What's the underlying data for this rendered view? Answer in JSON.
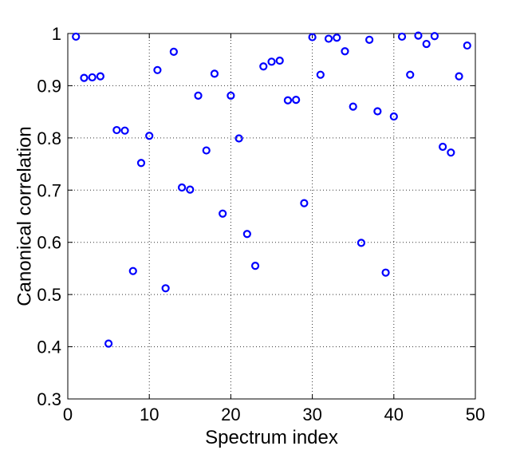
{
  "chart_data": {
    "type": "scatter",
    "xlabel": "Spectrum index",
    "ylabel": "Canonical correlation",
    "xlim": [
      0,
      50
    ],
    "ylim": [
      0.3,
      1
    ],
    "xticks": [
      "0",
      "10",
      "20",
      "30",
      "40",
      "50"
    ],
    "yticks": [
      "0.3",
      "0.4",
      "0.5",
      "0.6",
      "0.7",
      "0.8",
      "0.9",
      "1"
    ],
    "grid": true,
    "marker": "open-circle",
    "color": "#0000ff",
    "x": [
      1,
      2,
      3,
      4,
      5,
      6,
      7,
      8,
      9,
      10,
      11,
      12,
      13,
      14,
      15,
      16,
      17,
      18,
      19,
      20,
      21,
      22,
      23,
      24,
      25,
      26,
      27,
      28,
      29,
      30,
      31,
      32,
      33,
      34,
      35,
      36,
      37,
      38,
      39,
      40,
      41,
      42,
      43,
      44,
      45,
      46,
      47,
      48,
      49
    ],
    "y": [
      0.994,
      0.915,
      0.916,
      0.918,
      0.406,
      0.815,
      0.814,
      0.545,
      0.752,
      0.804,
      0.93,
      0.512,
      0.965,
      0.705,
      0.701,
      0.881,
      0.776,
      0.923,
      0.655,
      0.881,
      0.799,
      0.616,
      0.555,
      0.937,
      0.946,
      0.948,
      0.872,
      0.873,
      0.675,
      0.993,
      0.921,
      0.99,
      0.992,
      0.966,
      0.86,
      0.599,
      0.988,
      0.851,
      0.542,
      0.841,
      0.994,
      0.921,
      0.996,
      0.98,
      0.995,
      0.783,
      0.772,
      0.918,
      0.977
    ]
  }
}
